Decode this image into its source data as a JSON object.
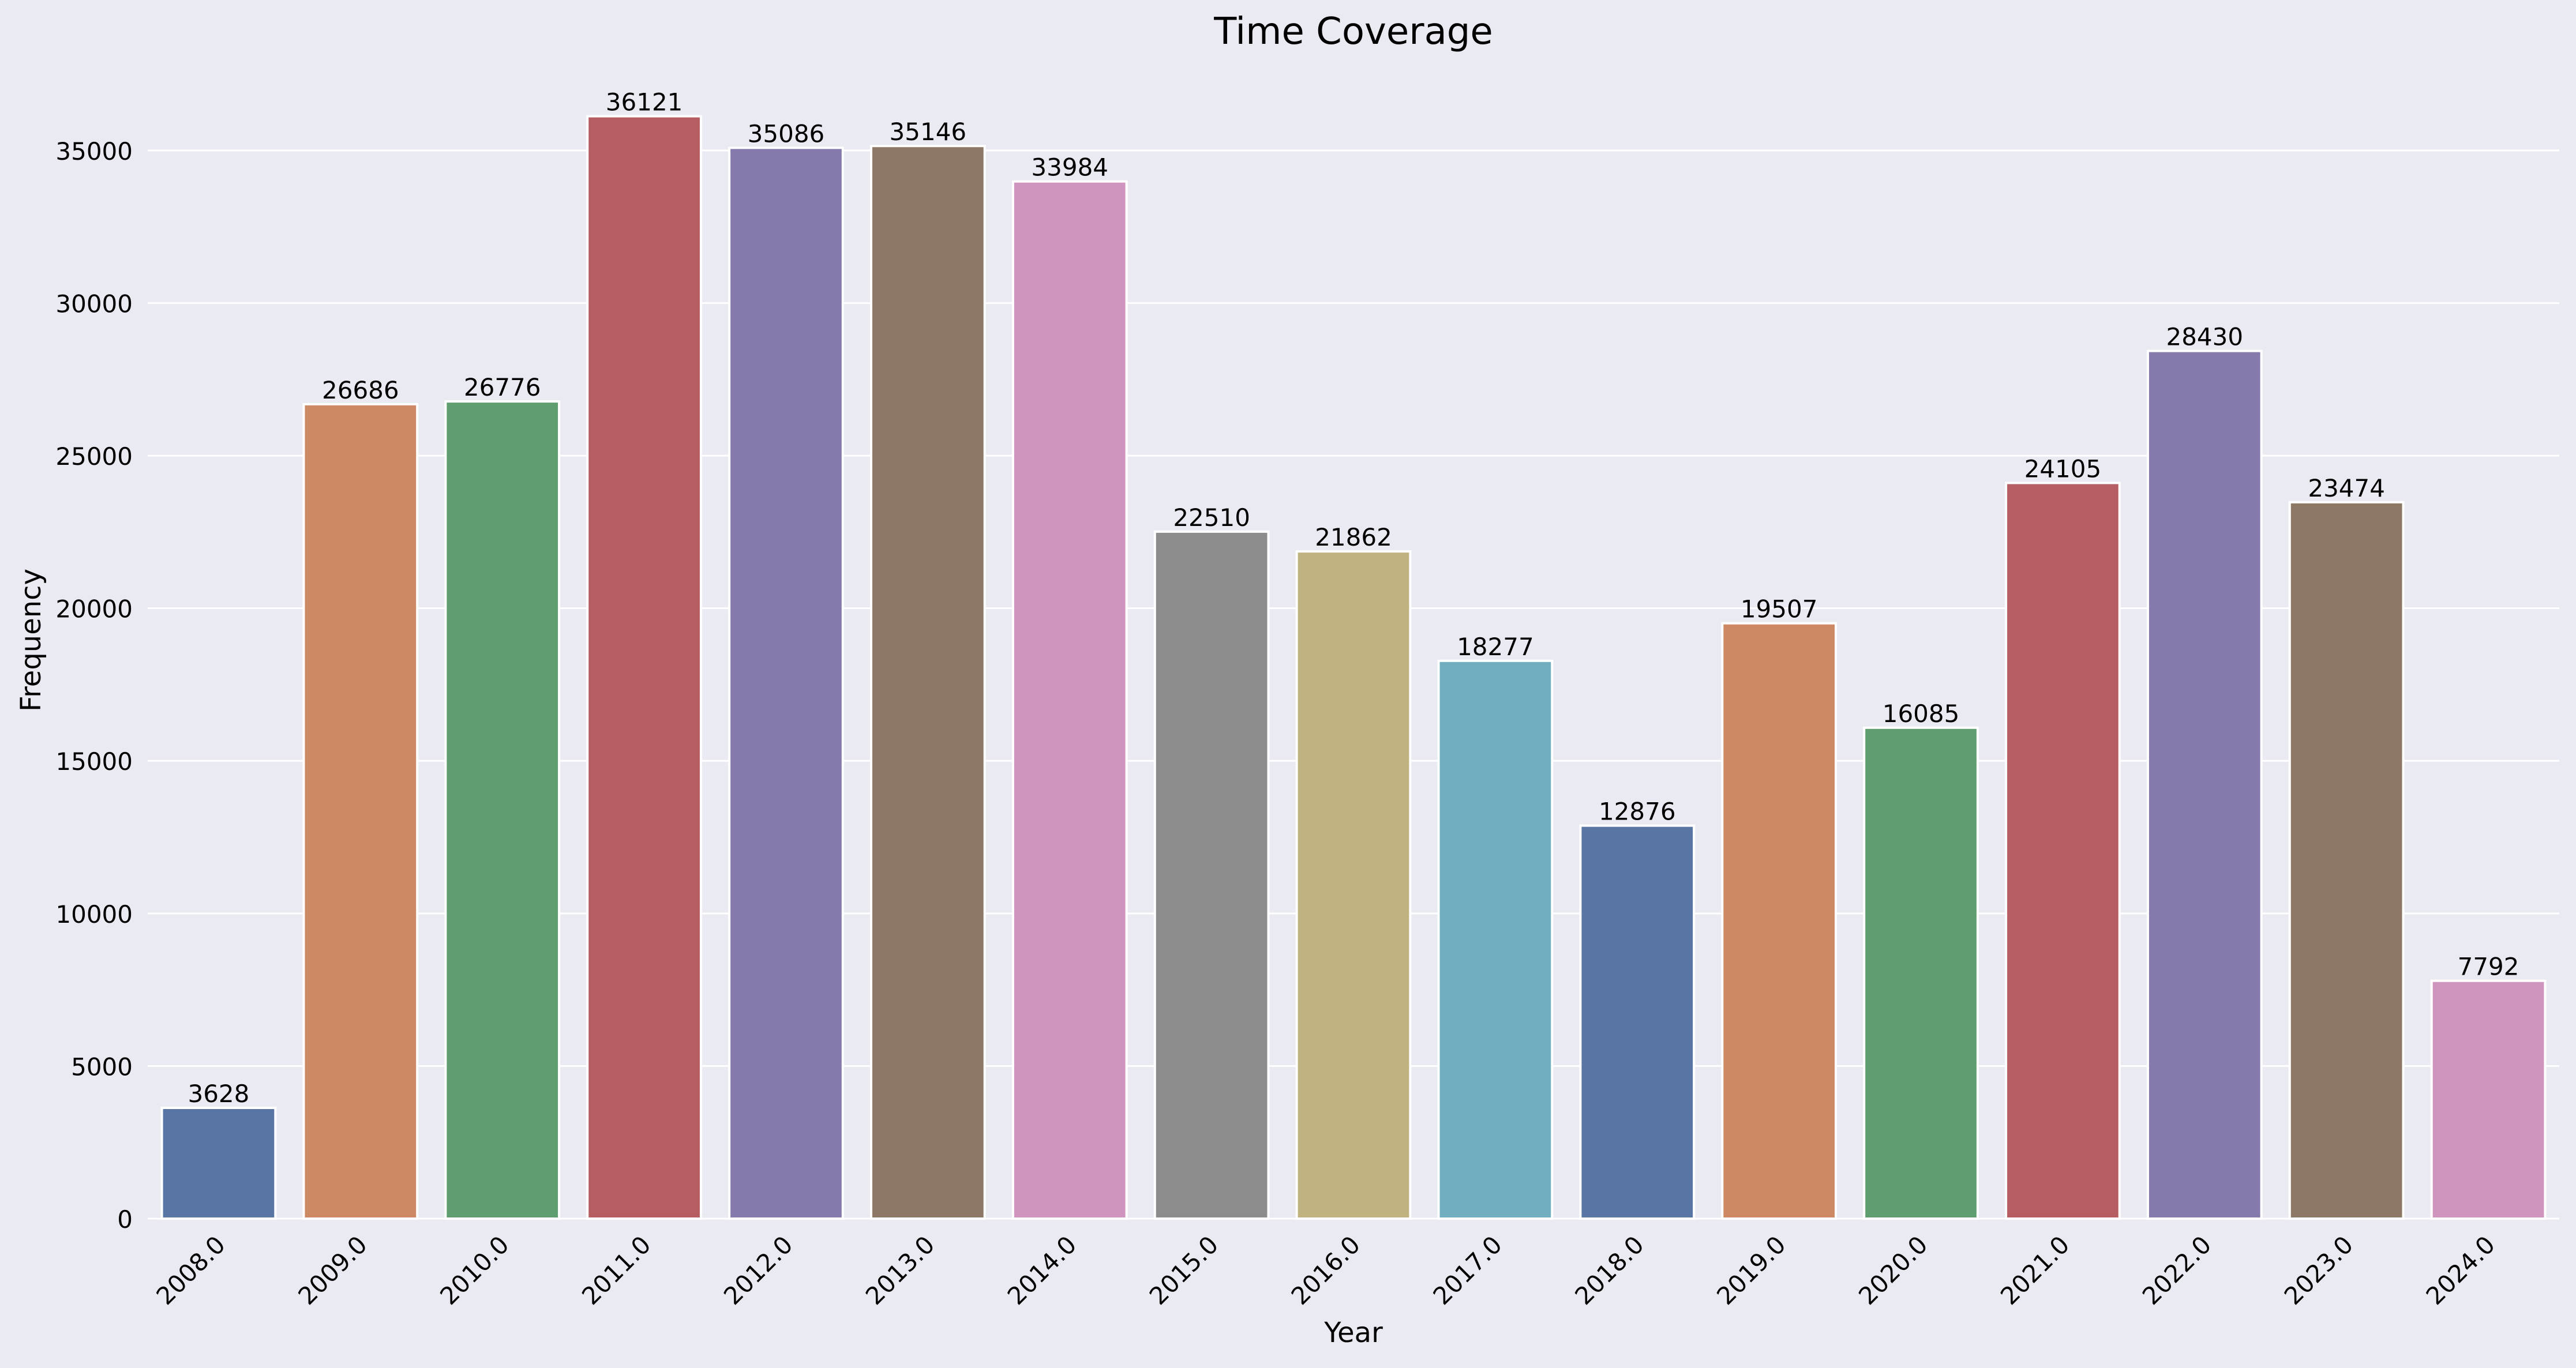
{
  "chart_data": {
    "type": "bar",
    "title": "Time Coverage",
    "xlabel": "Year",
    "ylabel": "Frequency",
    "categories": [
      "2008.0",
      "2009.0",
      "2010.0",
      "2011.0",
      "2012.0",
      "2013.0",
      "2014.0",
      "2015.0",
      "2016.0",
      "2017.0",
      "2018.0",
      "2019.0",
      "2020.0",
      "2021.0",
      "2022.0",
      "2023.0",
      "2024.0"
    ],
    "values": [
      3628,
      26686,
      26776,
      36121,
      35086,
      35146,
      33984,
      22510,
      21862,
      18277,
      12876,
      19507,
      16085,
      24105,
      28430,
      23474,
      7792
    ],
    "data_labels": [
      "3628",
      "26686",
      "26776",
      "36121",
      "35086",
      "35146",
      "33984",
      "22510",
      "21862",
      "18277",
      "12876",
      "19507",
      "16085",
      "24105",
      "28430",
      "23474",
      "7792"
    ],
    "yticks": [
      0,
      5000,
      10000,
      15000,
      20000,
      25000,
      30000,
      35000
    ],
    "ytick_labels": [
      "0",
      "5000",
      "10000",
      "15000",
      "20000",
      "25000",
      "30000",
      "35000"
    ],
    "ylim": [
      0,
      37927
    ],
    "grid": true,
    "colors": [
      "#5975a4",
      "#cc8963",
      "#5f9e6e",
      "#b55d60",
      "#857aab",
      "#8d7866",
      "#d095bf",
      "#8c8c8c",
      "#c1b37f",
      "#71aec0",
      "#5975a4",
      "#cc8963",
      "#5f9e6e",
      "#b55d60",
      "#857aab",
      "#8d7866",
      "#d095bf"
    ],
    "background_color": "#eaeaf2",
    "grid_color": "#ffffff"
  }
}
